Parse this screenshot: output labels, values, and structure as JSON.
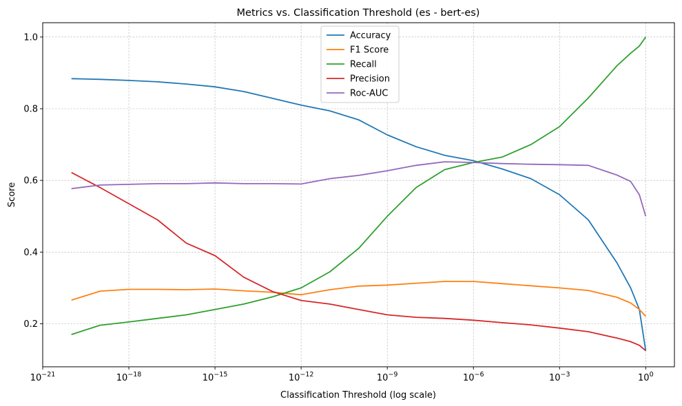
{
  "chart_data": {
    "type": "line",
    "title": "Metrics vs. Classification Threshold (es - bert-es)",
    "xlabel": "Classification Threshold (log scale)",
    "ylabel": "Score",
    "x_scale": "log",
    "xlim": [
      1e-21,
      10.0
    ],
    "ylim": [
      0.08,
      1.04
    ],
    "grid": true,
    "legend_position": "top-center",
    "x_ticks": [
      {
        "value": 1e-21,
        "base": "10",
        "exp": "−21"
      },
      {
        "value": 1e-18,
        "base": "10",
        "exp": "−18"
      },
      {
        "value": 1e-15,
        "base": "10",
        "exp": "−15"
      },
      {
        "value": 1e-12,
        "base": "10",
        "exp": "−12"
      },
      {
        "value": 1e-09,
        "base": "10",
        "exp": "−9"
      },
      {
        "value": 1e-06,
        "base": "10",
        "exp": "−6"
      },
      {
        "value": 0.001,
        "base": "10",
        "exp": "−3"
      },
      {
        "value": 1,
        "base": "10",
        "exp": "0"
      }
    ],
    "y_ticks": [
      {
        "value": 0.2,
        "label": "0.2"
      },
      {
        "value": 0.4,
        "label": "0.4"
      },
      {
        "value": 0.6,
        "label": "0.6"
      },
      {
        "value": 0.8,
        "label": "0.8"
      },
      {
        "value": 1.0,
        "label": "1.0"
      }
    ],
    "x": [
      1e-20,
      1e-19,
      1e-18,
      1e-17,
      1e-16,
      1e-15,
      1e-14,
      1e-13,
      1e-12,
      1e-11,
      1e-10,
      1e-09,
      1e-08,
      1e-07,
      1e-06,
      1e-05,
      0.0001,
      0.001,
      0.01,
      0.1,
      0.3,
      0.6,
      1
    ],
    "series": [
      {
        "name": "Accuracy",
        "color": "#1f77b4",
        "values": [
          0.884,
          0.882,
          0.879,
          0.875,
          0.869,
          0.861,
          0.848,
          0.829,
          0.81,
          0.794,
          0.769,
          0.727,
          0.694,
          0.67,
          0.655,
          0.632,
          0.605,
          0.56,
          0.49,
          0.37,
          0.3,
          0.24,
          0.125
        ]
      },
      {
        "name": "F1 Score",
        "color": "#ff7f0e",
        "values": [
          0.266,
          0.291,
          0.296,
          0.296,
          0.295,
          0.297,
          0.292,
          0.288,
          0.281,
          0.295,
          0.305,
          0.308,
          0.313,
          0.318,
          0.318,
          0.312,
          0.306,
          0.3,
          0.293,
          0.274,
          0.258,
          0.24,
          0.221
        ]
      },
      {
        "name": "Recall",
        "color": "#2ca02c",
        "values": [
          0.17,
          0.196,
          0.205,
          0.215,
          0.225,
          0.24,
          0.255,
          0.275,
          0.3,
          0.345,
          0.41,
          0.5,
          0.58,
          0.63,
          0.65,
          0.665,
          0.7,
          0.75,
          0.83,
          0.92,
          0.955,
          0.975,
          1.0
        ]
      },
      {
        "name": "Precision",
        "color": "#d62728",
        "values": [
          0.622,
          0.58,
          0.535,
          0.49,
          0.425,
          0.39,
          0.33,
          0.29,
          0.265,
          0.255,
          0.24,
          0.225,
          0.218,
          0.215,
          0.21,
          0.203,
          0.197,
          0.188,
          0.178,
          0.16,
          0.15,
          0.14,
          0.125
        ]
      },
      {
        "name": "Roc-AUC",
        "color": "#9467bd",
        "values": [
          0.577,
          0.587,
          0.589,
          0.591,
          0.591,
          0.593,
          0.591,
          0.591,
          0.59,
          0.605,
          0.614,
          0.627,
          0.642,
          0.652,
          0.65,
          0.647,
          0.645,
          0.644,
          0.642,
          0.615,
          0.597,
          0.56,
          0.5
        ]
      }
    ]
  }
}
